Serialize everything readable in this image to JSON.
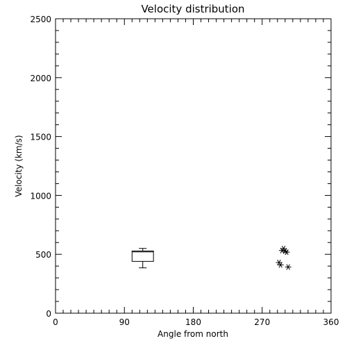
{
  "chart_data": {
    "type": "scatter",
    "title": "Velocity distribution",
    "xlabel": "Angle from north",
    "ylabel": "Velocity (km/s)",
    "xlim": [
      0,
      360
    ],
    "ylim": [
      0,
      2500
    ],
    "xticks": [
      "0",
      "90",
      "180",
      "270",
      "360"
    ],
    "xtick_values": [
      0,
      90,
      180,
      270,
      360
    ],
    "yticks": [
      "0",
      "500",
      "1000",
      "1500",
      "2000",
      "2500"
    ],
    "ytick_values": [
      0,
      500,
      1000,
      1500,
      2000,
      2500
    ],
    "grid": false,
    "boxplot": {
      "x_left": 100,
      "x_right": 128,
      "whisker_low": 385,
      "q1": 440,
      "median": 520,
      "q3": 528,
      "whisker_high": 550
    },
    "points": [
      {
        "x": 292,
        "y": 430
      },
      {
        "x": 294,
        "y": 410
      },
      {
        "x": 296,
        "y": 532
      },
      {
        "x": 298,
        "y": 548
      },
      {
        "x": 300,
        "y": 528
      },
      {
        "x": 302,
        "y": 518
      },
      {
        "x": 304,
        "y": 392
      }
    ]
  }
}
